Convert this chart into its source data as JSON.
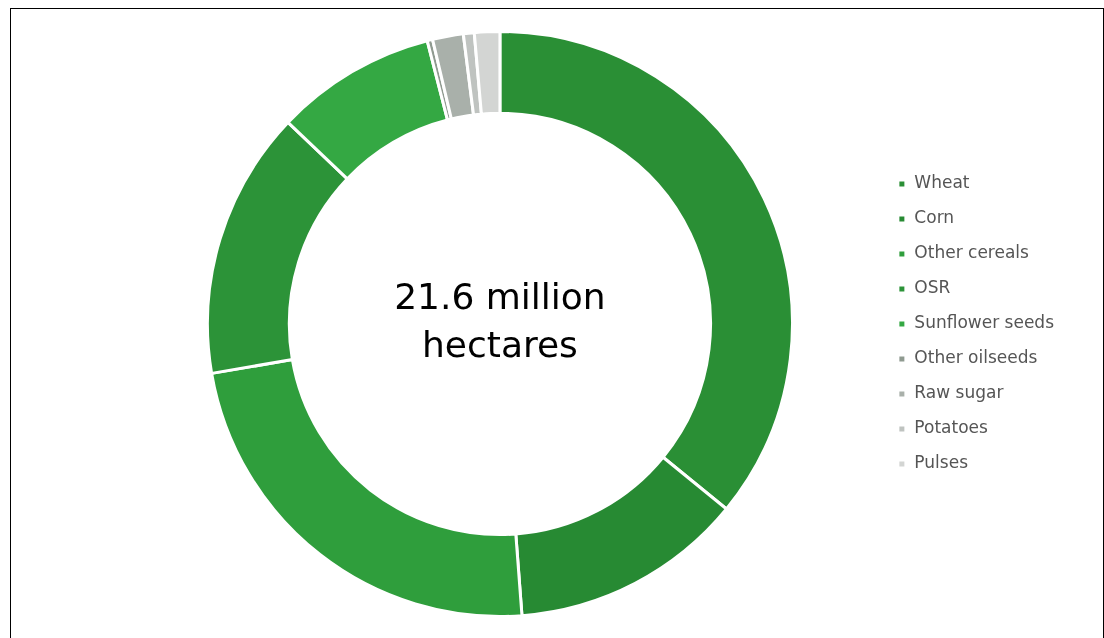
{
  "chart_data": {
    "type": "donut",
    "categories": [
      "Wheat",
      "Corn",
      "Other cereals",
      "OSR",
      "Sunflower seeds",
      "Other oilseeds",
      "Raw sugar",
      "Potatoes",
      "Pulses"
    ],
    "values": [
      35.9,
      12.9,
      23.5,
      14.8,
      8.9,
      0.3,
      1.7,
      0.6,
      1.4
    ],
    "colors": [
      "#2a8f35",
      "#278a33",
      "#2f9e3c",
      "#2c9338",
      "#34a843",
      "#8f9a90",
      "#a9b0aa",
      "#bfc3c0",
      "#d3d5d3"
    ],
    "annotations": [
      "21.6 million hectares"
    ],
    "legend": "right"
  }
}
